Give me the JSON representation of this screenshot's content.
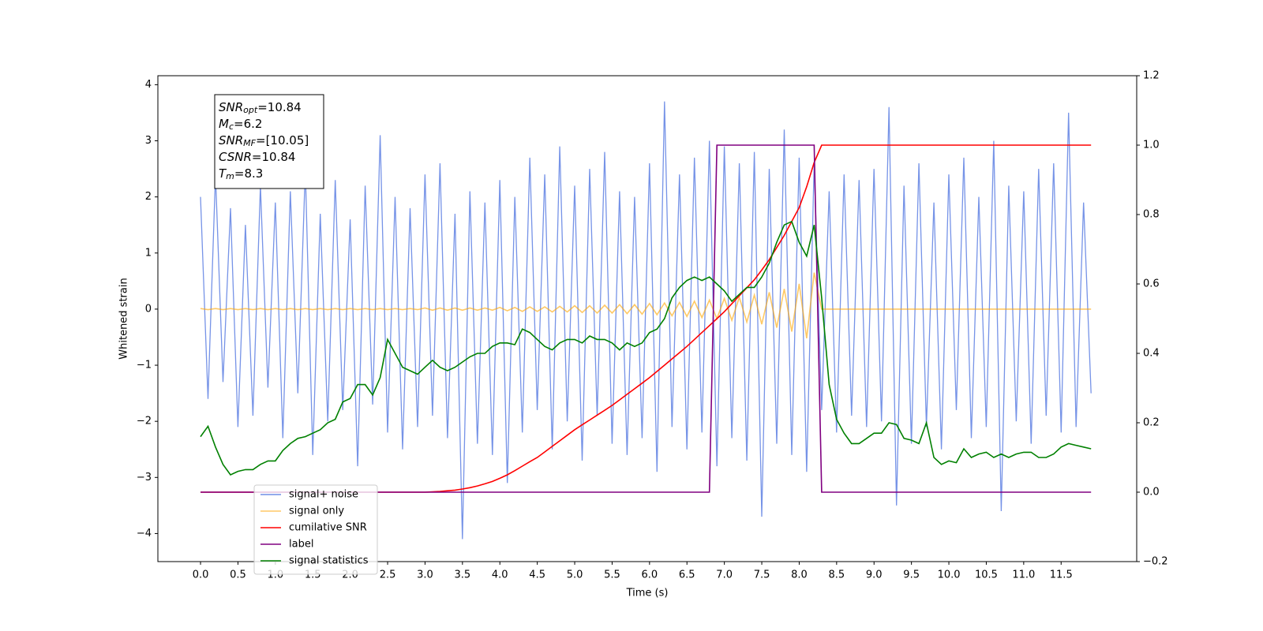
{
  "chart_data": {
    "type": "line",
    "xlabel": "Time (s)",
    "ylabel": "Whitened strain",
    "xlim": [
      -0.57,
      12.51
    ],
    "ylim": [
      -4.5,
      4.16
    ],
    "y2lim": [
      -0.2,
      1.2
    ],
    "xticks": [
      {
        "value": 0,
        "label": "0.0"
      },
      0.5,
      {
        "value": 1,
        "label": "1.0"
      },
      1.5,
      {
        "value": 2,
        "label": "2.0"
      },
      2.5,
      {
        "value": 3,
        "label": "3.0"
      },
      3.5,
      {
        "value": 4,
        "label": "4.0"
      },
      4.5,
      {
        "value": 5,
        "label": "5.0"
      },
      5.5,
      {
        "value": 6,
        "label": "6.0"
      },
      6.5,
      {
        "value": 7,
        "label": "7.0"
      },
      7.5,
      {
        "value": 8,
        "label": "8.0"
      },
      8.5,
      {
        "value": 9,
        "label": "9.0"
      },
      9.5,
      {
        "value": 10,
        "label": "10.0"
      },
      10.5,
      {
        "value": 11,
        "label": "11.0"
      },
      11.5
    ],
    "yticks": [
      {
        "value": -4,
        "label": "−4"
      },
      {
        "value": -3,
        "label": "−3"
      },
      {
        "value": -2,
        "label": "−2"
      },
      {
        "value": -1,
        "label": "−1"
      },
      0,
      1,
      2,
      3,
      4
    ],
    "y2ticks": [
      {
        "value": -0.2,
        "label": "−0.2"
      },
      {
        "value": 0,
        "label": "0.0"
      },
      0.2,
      0.4,
      0.6,
      0.8,
      {
        "value": 1,
        "label": "1.0"
      },
      1.2
    ],
    "grid": false,
    "legend": "lower left",
    "annotation": [
      {
        "base": "SNR",
        "sub": "opt",
        "rest": "=10.84"
      },
      {
        "base": "M",
        "sub": "c",
        "rest": "=6.2"
      },
      {
        "base": "SNR",
        "sub": "MF",
        "rest": "=[10.05]"
      },
      {
        "base": "CSNR",
        "sub": "",
        "rest": "=10.84"
      },
      {
        "base": "T",
        "sub": "m",
        "rest": "=8.3"
      }
    ],
    "x": [
      0.0,
      0.1,
      0.2,
      0.3,
      0.4,
      0.5,
      0.6,
      0.7,
      0.8,
      0.9,
      1.0,
      1.1,
      1.2,
      1.3,
      1.4,
      1.5,
      1.6,
      1.7,
      1.8,
      1.9,
      2.0,
      2.1,
      2.2,
      2.3,
      2.4,
      2.5,
      2.6,
      2.7,
      2.8,
      2.9,
      3.0,
      3.1,
      3.2,
      3.3,
      3.4,
      3.5,
      3.6,
      3.7,
      3.8,
      3.9,
      4.0,
      4.1,
      4.2,
      4.3,
      4.4,
      4.5,
      4.6,
      4.7,
      4.8,
      4.9,
      5.0,
      5.1,
      5.2,
      5.3,
      5.4,
      5.5,
      5.6,
      5.7,
      5.8,
      5.9,
      6.0,
      6.1,
      6.2,
      6.3,
      6.4,
      6.5,
      6.6,
      6.7,
      6.8,
      6.9,
      7.0,
      7.1,
      7.2,
      7.3,
      7.4,
      7.5,
      7.6,
      7.7,
      7.8,
      7.9,
      8.0,
      8.1,
      8.2,
      8.3,
      8.4,
      8.5,
      8.6,
      8.7,
      8.8,
      8.9,
      9.0,
      9.1,
      9.2,
      9.3,
      9.4,
      9.5,
      9.6,
      9.7,
      9.8,
      9.9,
      10.0,
      10.1,
      10.2,
      10.3,
      10.4,
      10.5,
      10.6,
      10.7,
      10.8,
      10.9,
      11.0,
      11.1,
      11.2,
      11.3,
      11.4,
      11.5,
      11.6,
      11.7,
      11.8,
      11.9
    ],
    "series": [
      {
        "name": "signal+ noise",
        "color": "#6f8de6",
        "axis": "y",
        "values": [
          2.0,
          -1.6,
          2.4,
          -1.3,
          1.8,
          -2.1,
          1.5,
          -1.9,
          2.2,
          -1.4,
          1.9,
          -2.3,
          2.1,
          -1.5,
          2.5,
          -2.6,
          1.7,
          -2.0,
          2.3,
          -1.8,
          1.6,
          -2.8,
          2.2,
          -1.7,
          3.1,
          -2.2,
          2.0,
          -2.5,
          1.8,
          -2.1,
          2.4,
          -1.9,
          2.6,
          -2.3,
          1.7,
          -4.1,
          2.1,
          -2.4,
          1.9,
          -2.6,
          2.3,
          -3.1,
          2.0,
          -2.2,
          2.7,
          -1.8,
          2.4,
          -2.5,
          2.9,
          -2.0,
          2.2,
          -2.7,
          2.5,
          -1.9,
          2.8,
          -2.4,
          2.1,
          -2.6,
          2.0,
          -2.3,
          2.6,
          -2.9,
          3.7,
          -2.1,
          2.4,
          -2.5,
          2.7,
          -2.2,
          3.0,
          -2.8,
          2.9,
          -2.3,
          2.6,
          -2.7,
          2.8,
          -3.7,
          2.5,
          -2.4,
          3.2,
          -2.6,
          2.7,
          -2.9,
          2.6,
          -1.8,
          2.1,
          -2.2,
          2.4,
          -1.9,
          2.3,
          -2.1,
          2.5,
          -2.0,
          3.6,
          -3.5,
          2.2,
          -2.4,
          2.6,
          -2.1,
          1.9,
          -2.5,
          2.4,
          -1.8,
          2.7,
          -2.3,
          2.0,
          -2.1,
          3.0,
          -3.6,
          2.2,
          -2.0,
          2.1,
          -2.4,
          2.5,
          -1.9,
          2.6,
          -2.2,
          3.5,
          -2.1,
          1.9,
          -1.5
        ]
      },
      {
        "name": "signal only",
        "color": "#ffa500",
        "axis": "y",
        "values": [
          0.01,
          -0.01,
          0.01,
          -0.01,
          0.01,
          -0.01,
          0.01,
          -0.01,
          0.01,
          -0.01,
          0.01,
          -0.01,
          0.01,
          -0.01,
          0.01,
          -0.01,
          0.01,
          -0.01,
          0.01,
          -0.01,
          0.01,
          -0.01,
          0.01,
          -0.01,
          0.01,
          -0.01,
          0.01,
          -0.01,
          0.01,
          -0.01,
          0.02,
          -0.02,
          0.02,
          -0.02,
          0.02,
          -0.02,
          0.02,
          -0.02,
          0.02,
          -0.02,
          0.03,
          -0.03,
          0.03,
          -0.04,
          0.04,
          -0.04,
          0.04,
          -0.05,
          0.05,
          -0.05,
          0.06,
          -0.06,
          0.06,
          -0.07,
          0.07,
          -0.07,
          0.08,
          -0.08,
          0.08,
          -0.09,
          0.1,
          -0.1,
          0.11,
          -0.12,
          0.12,
          -0.13,
          0.14,
          -0.15,
          0.16,
          -0.17,
          0.19,
          -0.2,
          0.21,
          -0.23,
          0.25,
          -0.27,
          0.3,
          -0.33,
          0.36,
          -0.4,
          0.45,
          -0.52,
          0.65,
          0,
          0,
          0,
          0,
          0,
          0,
          0,
          0,
          0,
          0,
          0,
          0,
          0,
          0,
          0,
          0,
          0,
          0,
          0,
          0,
          0,
          0,
          0,
          0,
          0,
          0,
          0,
          0,
          0,
          0,
          0,
          0,
          0,
          0,
          0,
          0,
          0
        ]
      },
      {
        "name": "cumilative SNR",
        "color": "#ff0000",
        "axis": "y2",
        "values": [
          0,
          0,
          0,
          0,
          0,
          0,
          0,
          0,
          0,
          0,
          0,
          0,
          0,
          0,
          0,
          0,
          0,
          0,
          0,
          0,
          0,
          0,
          0,
          0,
          0,
          0,
          0,
          0,
          0,
          0,
          0,
          0.001,
          0.002,
          0.004,
          0.006,
          0.009,
          0.013,
          0.018,
          0.024,
          0.031,
          0.04,
          0.05,
          0.062,
          0.075,
          0.088,
          0.1,
          0.116,
          0.132,
          0.148,
          0.164,
          0.18,
          0.194,
          0.208,
          0.222,
          0.236,
          0.25,
          0.266,
          0.282,
          0.298,
          0.314,
          0.33,
          0.348,
          0.366,
          0.384,
          0.402,
          0.42,
          0.44,
          0.46,
          0.48,
          0.5,
          0.52,
          0.543,
          0.566,
          0.589,
          0.612,
          0.64,
          0.67,
          0.705,
          0.74,
          0.78,
          0.82,
          0.88,
          0.95,
          1.0,
          1.0,
          1.0,
          1.0,
          1.0,
          1.0,
          1.0,
          1.0,
          1.0,
          1.0,
          1.0,
          1.0,
          1.0,
          1.0,
          1.0,
          1.0,
          1.0,
          1.0,
          1.0,
          1.0,
          1.0,
          1.0,
          1.0,
          1.0,
          1.0,
          1.0,
          1.0,
          1.0,
          1.0,
          1.0,
          1.0,
          1.0,
          1.0,
          1.0,
          1.0,
          1.0,
          1.0
        ]
      },
      {
        "name": "label",
        "color": "#800080",
        "axis": "y2",
        "values": [
          0,
          0,
          0,
          0,
          0,
          0,
          0,
          0,
          0,
          0,
          0,
          0,
          0,
          0,
          0,
          0,
          0,
          0,
          0,
          0,
          0,
          0,
          0,
          0,
          0,
          0,
          0,
          0,
          0,
          0,
          0,
          0,
          0,
          0,
          0,
          0,
          0,
          0,
          0,
          0,
          0,
          0,
          0,
          0,
          0,
          0,
          0,
          0,
          0,
          0,
          0,
          0,
          0,
          0,
          0,
          0,
          0,
          0,
          0,
          0,
          0,
          0,
          0,
          0,
          0,
          0,
          0,
          0,
          0,
          1,
          1,
          1,
          1,
          1,
          1,
          1,
          1,
          1,
          1,
          1,
          1,
          1,
          1,
          0,
          0,
          0,
          0,
          0,
          0,
          0,
          0,
          0,
          0,
          0,
          0,
          0,
          0,
          0,
          0,
          0,
          0,
          0,
          0,
          0,
          0,
          0,
          0,
          0,
          0,
          0,
          0,
          0,
          0,
          0,
          0,
          0,
          0,
          0,
          0,
          0
        ]
      },
      {
        "name": "signal statistics",
        "color": "#008000",
        "axis": "y2",
        "values": [
          0.16,
          0.19,
          0.13,
          0.08,
          0.05,
          0.06,
          0.065,
          0.065,
          0.08,
          0.09,
          0.09,
          0.12,
          0.14,
          0.155,
          0.16,
          0.17,
          0.18,
          0.2,
          0.21,
          0.26,
          0.27,
          0.31,
          0.31,
          0.28,
          0.33,
          0.44,
          0.4,
          0.36,
          0.35,
          0.34,
          0.36,
          0.38,
          0.36,
          0.35,
          0.36,
          0.375,
          0.39,
          0.4,
          0.4,
          0.42,
          0.43,
          0.43,
          0.425,
          0.47,
          0.46,
          0.44,
          0.42,
          0.41,
          0.43,
          0.44,
          0.44,
          0.43,
          0.45,
          0.44,
          0.44,
          0.43,
          0.41,
          0.43,
          0.42,
          0.43,
          0.46,
          0.47,
          0.5,
          0.56,
          0.59,
          0.61,
          0.62,
          0.61,
          0.62,
          0.6,
          0.58,
          0.55,
          0.57,
          0.59,
          0.59,
          0.62,
          0.66,
          0.72,
          0.77,
          0.78,
          0.72,
          0.68,
          0.77,
          0.56,
          0.31,
          0.21,
          0.17,
          0.14,
          0.14,
          0.155,
          0.17,
          0.17,
          0.2,
          0.195,
          0.155,
          0.15,
          0.14,
          0.2,
          0.1,
          0.08,
          0.09,
          0.085,
          0.125,
          0.1,
          0.11,
          0.115,
          0.1,
          0.11,
          0.1,
          0.11,
          0.115,
          0.115,
          0.1,
          0.1,
          0.11,
          0.13,
          0.14,
          0.135,
          0.13,
          0.125
        ]
      }
    ]
  }
}
